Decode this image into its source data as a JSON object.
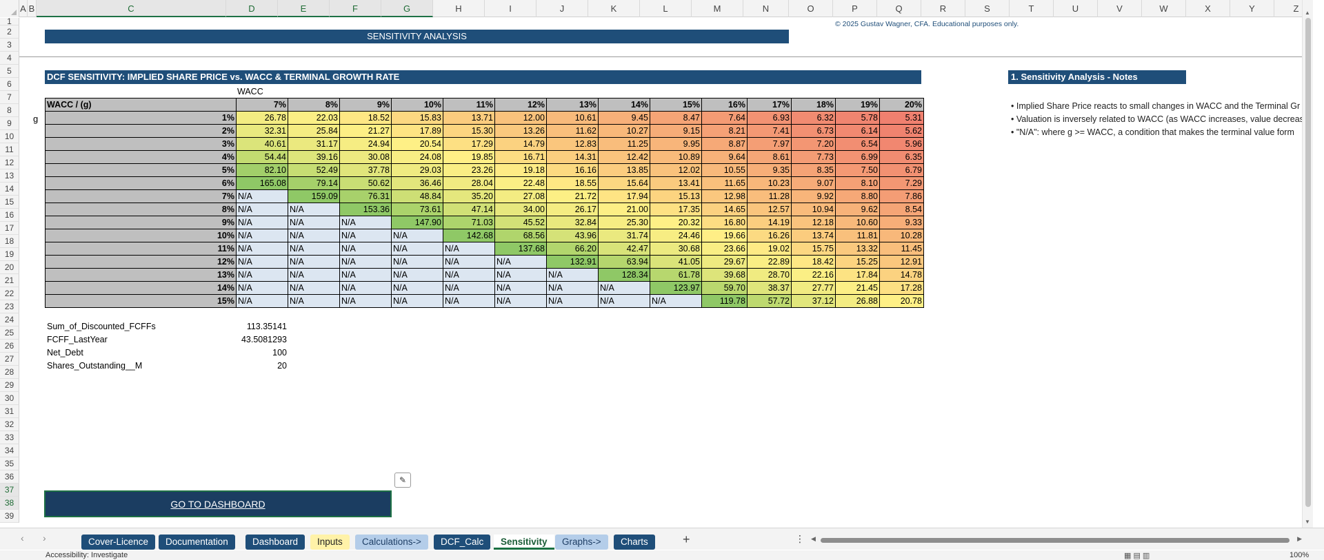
{
  "columns": [
    "A",
    "B",
    "C",
    "D",
    "E",
    "F",
    "G",
    "H",
    "I",
    "J",
    "K",
    "L",
    "M",
    "N",
    "O",
    "P",
    "Q",
    "R",
    "S",
    "T",
    "U",
    "V",
    "W",
    "X",
    "Y",
    "Z"
  ],
  "selected_columns": [
    "C",
    "D",
    "E",
    "F",
    "G"
  ],
  "rows": [
    "1",
    "2",
    "3",
    "4",
    "5",
    "6",
    "7",
    "8",
    "9",
    "10",
    "11",
    "12",
    "13",
    "14",
    "15",
    "16",
    "17",
    "18",
    "19",
    "20",
    "21",
    "22",
    "23",
    "24",
    "25",
    "26",
    "27",
    "28",
    "29",
    "30",
    "31",
    "32",
    "33",
    "34",
    "35",
    "36",
    "37",
    "38",
    "39"
  ],
  "selected_rows": [
    "37",
    "38"
  ],
  "title": "SENSITIVITY ANALYSIS",
  "copyright": "© 2025 Gustav Wagner, CFA. Educational purposes only.",
  "dcf_title": "DCF SENSITIVITY: IMPLIED SHARE PRICE vs. WACC & TERMINAL GROWTH RATE",
  "wacc_label": "WACC",
  "g_label": "g",
  "table": {
    "corner": "WACC / (g)",
    "wacc_headers": [
      "7%",
      "8%",
      "9%",
      "10%",
      "11%",
      "12%",
      "13%",
      "14%",
      "15%",
      "16%",
      "17%",
      "18%",
      "19%",
      "20%"
    ],
    "g_rows": [
      "1%",
      "2%",
      "3%",
      "4%",
      "5%",
      "6%",
      "7%",
      "8%",
      "9%",
      "10%",
      "11%",
      "12%",
      "13%",
      "14%",
      "15%"
    ],
    "values": [
      [
        "26.78",
        "22.03",
        "18.52",
        "15.83",
        "13.71",
        "12.00",
        "10.61",
        "9.45",
        "8.47",
        "7.64",
        "6.93",
        "6.32",
        "5.78",
        "5.31"
      ],
      [
        "32.31",
        "25.84",
        "21.27",
        "17.89",
        "15.30",
        "13.26",
        "11.62",
        "10.27",
        "9.15",
        "8.21",
        "7.41",
        "6.73",
        "6.14",
        "5.62"
      ],
      [
        "40.61",
        "31.17",
        "24.94",
        "20.54",
        "17.29",
        "14.79",
        "12.83",
        "11.25",
        "9.95",
        "8.87",
        "7.97",
        "7.20",
        "6.54",
        "5.96"
      ],
      [
        "54.44",
        "39.16",
        "30.08",
        "24.08",
        "19.85",
        "16.71",
        "14.31",
        "12.42",
        "10.89",
        "9.64",
        "8.61",
        "7.73",
        "6.99",
        "6.35"
      ],
      [
        "82.10",
        "52.49",
        "37.78",
        "29.03",
        "23.26",
        "19.18",
        "16.16",
        "13.85",
        "12.02",
        "10.55",
        "9.35",
        "8.35",
        "7.50",
        "6.79"
      ],
      [
        "165.08",
        "79.14",
        "50.62",
        "36.46",
        "28.04",
        "22.48",
        "18.55",
        "15.64",
        "13.41",
        "11.65",
        "10.23",
        "9.07",
        "8.10",
        "7.29"
      ],
      [
        "N/A",
        "159.09",
        "76.31",
        "48.84",
        "35.20",
        "27.08",
        "21.72",
        "17.94",
        "15.13",
        "12.98",
        "11.28",
        "9.92",
        "8.80",
        "7.86"
      ],
      [
        "N/A",
        "N/A",
        "153.36",
        "73.61",
        "47.14",
        "34.00",
        "26.17",
        "21.00",
        "17.35",
        "14.65",
        "12.57",
        "10.94",
        "9.62",
        "8.54"
      ],
      [
        "N/A",
        "N/A",
        "N/A",
        "147.90",
        "71.03",
        "45.52",
        "32.84",
        "25.30",
        "20.32",
        "16.80",
        "14.19",
        "12.18",
        "10.60",
        "9.33"
      ],
      [
        "N/A",
        "N/A",
        "N/A",
        "N/A",
        "142.68",
        "68.56",
        "43.96",
        "31.74",
        "24.46",
        "19.66",
        "16.26",
        "13.74",
        "11.81",
        "10.28"
      ],
      [
        "N/A",
        "N/A",
        "N/A",
        "N/A",
        "N/A",
        "137.68",
        "66.20",
        "42.47",
        "30.68",
        "23.66",
        "19.02",
        "15.75",
        "13.32",
        "11.45"
      ],
      [
        "N/A",
        "N/A",
        "N/A",
        "N/A",
        "N/A",
        "N/A",
        "132.91",
        "63.94",
        "41.05",
        "29.67",
        "22.89",
        "18.42",
        "15.25",
        "12.91"
      ],
      [
        "N/A",
        "N/A",
        "N/A",
        "N/A",
        "N/A",
        "N/A",
        "N/A",
        "128.34",
        "61.78",
        "39.68",
        "28.70",
        "22.16",
        "17.84",
        "14.78"
      ],
      [
        "N/A",
        "N/A",
        "N/A",
        "N/A",
        "N/A",
        "N/A",
        "N/A",
        "N/A",
        "123.97",
        "59.70",
        "38.37",
        "27.77",
        "21.45",
        "17.28"
      ],
      [
        "N/A",
        "N/A",
        "N/A",
        "N/A",
        "N/A",
        "N/A",
        "N/A",
        "N/A",
        "N/A",
        "119.78",
        "57.72",
        "37.12",
        "26.88",
        "20.78"
      ]
    ],
    "colors": {
      "na_fill": "#dce6f1",
      "diagonal_green": "#8fc866",
      "high_green": "#b9d86e",
      "yellow": "#fff086",
      "orange": "#f8b67a",
      "red": "#ef7c6e"
    }
  },
  "inputs": [
    {
      "label": "Sum_of_Discounted_FCFFs",
      "value": "113.35141"
    },
    {
      "label": "FCFF_LastYear",
      "value": "43.5081293"
    },
    {
      "label": "Net_Debt",
      "value": "100"
    },
    {
      "label": "Shares_Outstanding__M",
      "value": "20"
    }
  ],
  "dashboard_button": "GO TO DASHBOARD",
  "notes_title": "1. Sensitivity Analysis - Notes",
  "notes": [
    "• Implied Share Price reacts to small changes in WACC and the Terminal Gr",
    "• Valuation is inversely related to WACC (as WACC increases, value decreas",
    "• \"N/A\": where g >= WACC, a condition that makes the terminal value form"
  ],
  "sheet_tabs": [
    {
      "label": "Cover-Licence",
      "style": "navy"
    },
    {
      "label": "Documentation",
      "style": "navy"
    },
    {
      "label": "Dashboard",
      "style": "navy"
    },
    {
      "label": "Inputs",
      "style": "yellow"
    },
    {
      "label": "Calculations->",
      "style": "lightblue"
    },
    {
      "label": "DCF_Calc",
      "style": "navy"
    },
    {
      "label": "Sensitivity",
      "style": "active"
    },
    {
      "label": "Graphs->",
      "style": "lightblue"
    },
    {
      "label": "Charts",
      "style": "navy"
    }
  ],
  "icons": {
    "paste_options": "paste-options-icon",
    "add_sheet": "plus-icon",
    "more": "more-dots-icon"
  },
  "status": {
    "accessibility": "Accessibility: Investigate",
    "zoom": "100%"
  }
}
